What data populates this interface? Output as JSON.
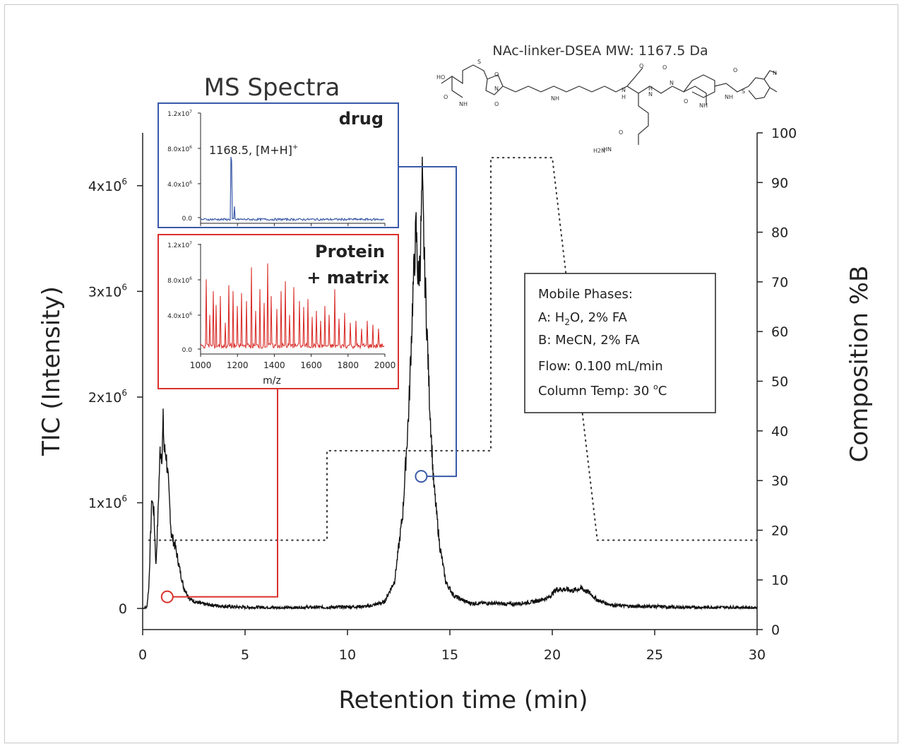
{
  "chart_data": {
    "type": "line",
    "xlabel": "Retention time (min)",
    "ylabel": "TIC (Intensity)",
    "y2label": "Composition %B",
    "xlim": [
      0,
      30
    ],
    "ylim": [
      -200000,
      4500000
    ],
    "y2lim": [
      0,
      100
    ],
    "x_ticks": [
      "0",
      "5",
      "10",
      "15",
      "20",
      "25",
      "30"
    ],
    "y_ticks": [
      {
        "value": 0,
        "base": "0",
        "exp": ""
      },
      {
        "value": 1000000,
        "base": "1x10",
        "exp": "6"
      },
      {
        "value": 2000000,
        "base": "2x10",
        "exp": "6"
      },
      {
        "value": 3000000,
        "base": "3x10",
        "exp": "6"
      },
      {
        "value": 4000000,
        "base": "4x10",
        "exp": "6"
      }
    ],
    "y2_ticks": [
      "0",
      "10",
      "20",
      "30",
      "40",
      "50",
      "60",
      "70",
      "80",
      "90",
      "100"
    ],
    "series": [
      {
        "color": "#111111",
        "x": [
          0,
          0.2,
          0.3,
          0.45,
          0.55,
          0.65,
          0.75,
          0.85,
          0.95,
          1.0,
          1.05,
          1.15,
          1.25,
          1.4,
          1.6,
          1.8,
          2.0,
          2.3,
          2.6,
          3.0,
          4.0,
          5.0,
          6.0,
          7.0,
          8.0,
          9.0,
          10.0,
          11.0,
          11.8,
          12.3,
          12.7,
          13.0,
          13.2,
          13.35,
          13.45,
          13.55,
          13.65,
          13.75,
          13.85,
          14.0,
          14.2,
          14.5,
          14.8,
          15.2,
          15.6,
          16.0,
          17.0,
          18.0,
          19.0,
          19.8,
          20.2,
          20.6,
          21.0,
          21.4,
          21.8,
          22.2,
          22.6,
          23.0,
          24.0,
          25.0,
          26.0,
          27.0,
          28.0,
          29.0,
          30.0
        ],
        "y": [
          0,
          10000,
          200000,
          1050000,
          900000,
          400000,
          900000,
          1500000,
          1450000,
          1780000,
          1500000,
          1450000,
          1200000,
          700000,
          580000,
          380000,
          200000,
          90000,
          60000,
          40000,
          20000,
          10000,
          10000,
          5000,
          10000,
          10000,
          15000,
          20000,
          60000,
          260000,
          900000,
          1900000,
          3000000,
          3600000,
          3100000,
          3300000,
          4050000,
          3300000,
          2800000,
          2000000,
          1200000,
          600000,
          250000,
          120000,
          80000,
          50000,
          50000,
          40000,
          60000,
          100000,
          180000,
          180000,
          170000,
          190000,
          150000,
          80000,
          50000,
          30000,
          20000,
          20000,
          10000,
          10000,
          10000,
          10000,
          5000
        ]
      }
    ],
    "composition_series": {
      "x": [
        0.3,
        9.0,
        9.0,
        17.0,
        17.0,
        20.0,
        22.2,
        30.0
      ],
      "y": [
        18,
        18,
        36,
        36,
        95,
        95,
        18,
        18
      ]
    },
    "markers": [
      {
        "x": 1.2,
        "y": 110000.0,
        "color": "#d9302c"
      },
      {
        "x": 13.6,
        "y": 1250000.0,
        "color": "#3a5aa8"
      }
    ],
    "legend": null,
    "grid": false
  },
  "title_text": "NAc-linker-DSEA MW: 1167.5 Da",
  "ms_spectra_title": "MS Spectra",
  "insets": {
    "drug": {
      "label": "drug",
      "color": "#3a5aa8",
      "peak_label": "1168.5, [M+H]",
      "peak_sup": "+",
      "y_ticks": [
        {
          "base": "1.2x10",
          "exp": "7"
        },
        {
          "base": "8.0x10",
          "exp": "6"
        },
        {
          "base": "4.0x10",
          "exp": "6"
        },
        {
          "base": "0.0",
          "exp": ""
        }
      ]
    },
    "protein": {
      "label_line1": "Protein",
      "label_line2": "+ matrix",
      "color": "#d9302c",
      "xlabel": "m/z",
      "x_ticks": [
        "1000",
        "1200",
        "1400",
        "1600",
        "1800",
        "2000"
      ],
      "y_ticks": [
        {
          "base": "1.2x10",
          "exp": "7"
        },
        {
          "base": "8.0x10",
          "exp": "6"
        },
        {
          "base": "4.0x10",
          "exp": "6"
        },
        {
          "base": "0.0",
          "exp": ""
        }
      ]
    }
  },
  "mobile_phase_box": {
    "title": "Mobile Phases:",
    "line_a_pre": "A: H",
    "line_a_sub": "2",
    "line_a_post": "O, 2% FA",
    "line_b": "B: MeCN, 2% FA",
    "line_flow": "Flow:  0.100 mL/min",
    "line_temp_pre": "Column Temp: 30 ",
    "line_temp_sup": "o",
    "line_temp_post": "C"
  },
  "structure_labels": [
    "HO",
    "O",
    "NH",
    "S",
    "N",
    "O",
    "O",
    "NH",
    "H",
    "N",
    "O",
    "N",
    "H",
    "O",
    "NH",
    "HN",
    "O",
    "H2N",
    "O",
    "N",
    "NH",
    "O",
    "S",
    "N"
  ]
}
